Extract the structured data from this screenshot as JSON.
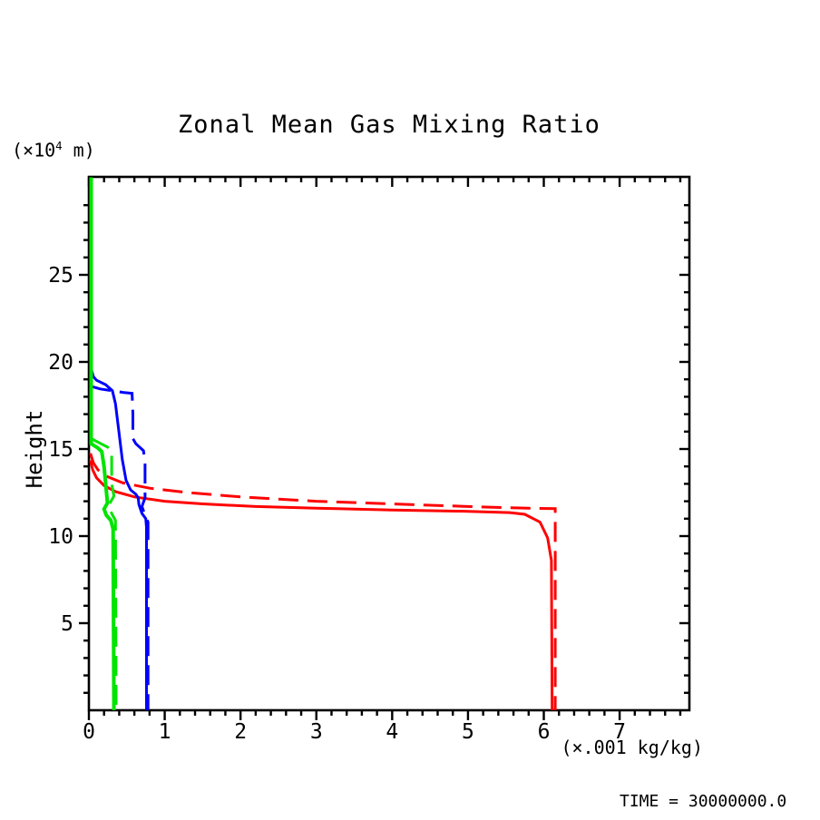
{
  "figure": {
    "title": "Zonal Mean Gas Mixing Ratio",
    "y_axis_unit": "(×10⁴ m)",
    "y_axis_title": "Height",
    "x_axis_unit": "(×.001 kg/kg)",
    "time_label": "TIME = 30000000.0",
    "background_color": "#ffffff",
    "axis_color": "#000000"
  },
  "chart_data": {
    "type": "line",
    "title": "Zonal Mean Gas Mixing Ratio",
    "xlabel": "(×.001 kg/kg)",
    "ylabel": "Height",
    "y_unit": "(×10⁴ m)",
    "annotation": "TIME = 30000000.0",
    "grid": false,
    "legend": "none",
    "xlim": [
      0,
      7.92
    ],
    "ylim": [
      0,
      30.625
    ],
    "x_major_ticks": [
      0,
      1,
      2,
      3,
      4,
      5,
      6,
      7
    ],
    "x_minor_step": 0.2,
    "y_major_ticks": [
      5,
      10,
      15,
      20,
      25
    ],
    "y_minor_step": 1,
    "series": [
      {
        "name": "red-solid",
        "color": "#ff0000",
        "line_style": "solid",
        "points": [
          [
            0.02,
            14.35
          ],
          [
            0.05,
            13.8
          ],
          [
            0.1,
            13.35
          ],
          [
            0.2,
            12.9
          ],
          [
            0.35,
            12.55
          ],
          [
            0.6,
            12.25
          ],
          [
            1.0,
            12.0
          ],
          [
            1.5,
            11.85
          ],
          [
            2.2,
            11.7
          ],
          [
            3.0,
            11.6
          ],
          [
            4.0,
            11.5
          ],
          [
            5.0,
            11.42
          ],
          [
            5.55,
            11.35
          ],
          [
            5.75,
            11.25
          ],
          [
            5.95,
            10.8
          ],
          [
            6.05,
            9.9
          ],
          [
            6.1,
            8.6
          ],
          [
            6.11,
            0
          ]
        ]
      },
      {
        "name": "red-dashed",
        "color": "#ff0000",
        "line_style": "dashed",
        "points": [
          [
            0.02,
            14.75
          ],
          [
            0.06,
            14.2
          ],
          [
            0.12,
            13.8
          ],
          [
            0.25,
            13.4
          ],
          [
            0.45,
            13.05
          ],
          [
            0.8,
            12.75
          ],
          [
            1.3,
            12.5
          ],
          [
            2.0,
            12.25
          ],
          [
            3.0,
            12.0
          ],
          [
            4.0,
            11.85
          ],
          [
            5.0,
            11.7
          ],
          [
            5.8,
            11.6
          ],
          [
            6.15,
            11.58
          ],
          [
            6.15,
            0
          ]
        ]
      },
      {
        "name": "blue-solid",
        "color": "#0000ff",
        "line_style": "solid",
        "points": [
          [
            0.03,
            19.6
          ],
          [
            0.06,
            19.15
          ],
          [
            0.1,
            18.95
          ],
          [
            0.22,
            18.7
          ],
          [
            0.31,
            18.35
          ],
          [
            0.35,
            17.6
          ],
          [
            0.39,
            16.2
          ],
          [
            0.44,
            14.4
          ],
          [
            0.49,
            13.2
          ],
          [
            0.55,
            12.65
          ],
          [
            0.62,
            12.4
          ],
          [
            0.65,
            12.2
          ],
          [
            0.66,
            11.8
          ],
          [
            0.7,
            11.3
          ],
          [
            0.75,
            11.0
          ],
          [
            0.76,
            10.5
          ],
          [
            0.76,
            0
          ]
        ]
      },
      {
        "name": "blue-dashed",
        "color": "#0000ff",
        "line_style": "dashed",
        "points": [
          [
            0.03,
            18.6
          ],
          [
            0.15,
            18.45
          ],
          [
            0.3,
            18.35
          ],
          [
            0.45,
            18.25
          ],
          [
            0.57,
            18.2
          ],
          [
            0.58,
            17.0
          ],
          [
            0.58,
            15.6
          ],
          [
            0.62,
            15.3
          ],
          [
            0.72,
            14.9
          ],
          [
            0.74,
            14.2
          ],
          [
            0.74,
            12.2
          ],
          [
            0.7,
            11.7
          ],
          [
            0.74,
            11.2
          ],
          [
            0.78,
            10.8
          ],
          [
            0.78,
            0
          ]
        ]
      },
      {
        "name": "green-solid",
        "color": "#00e400",
        "line_style": "solid",
        "points": [
          [
            0.03,
            30.6
          ],
          [
            0.03,
            15.3
          ],
          [
            0.12,
            15.05
          ],
          [
            0.17,
            14.85
          ],
          [
            0.2,
            14.0
          ],
          [
            0.23,
            12.6
          ],
          [
            0.245,
            11.9
          ],
          [
            0.2,
            11.55
          ],
          [
            0.23,
            11.2
          ],
          [
            0.29,
            10.9
          ],
          [
            0.32,
            10.4
          ],
          [
            0.33,
            0
          ]
        ]
      },
      {
        "name": "green-dashed",
        "color": "#00e400",
        "line_style": "dashed",
        "points": [
          [
            0.03,
            15.6
          ],
          [
            0.25,
            15.1
          ],
          [
            0.3,
            14.9
          ],
          [
            0.3,
            13.0
          ],
          [
            0.33,
            12.3
          ],
          [
            0.26,
            11.75
          ],
          [
            0.3,
            11.3
          ],
          [
            0.35,
            10.9
          ],
          [
            0.36,
            0
          ]
        ]
      }
    ]
  }
}
